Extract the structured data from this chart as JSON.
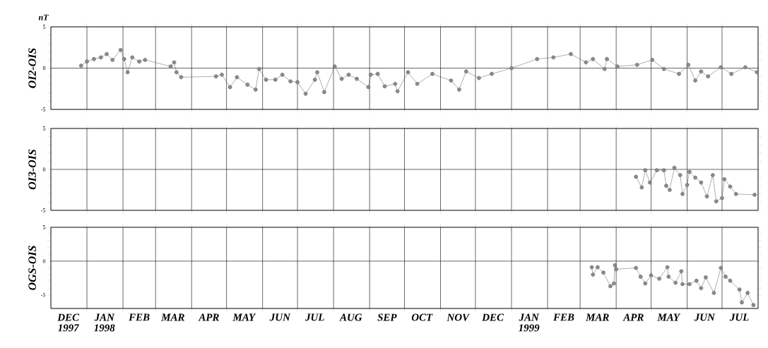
{
  "chart_data": [
    {
      "type": "line",
      "title": "nT",
      "ylabel": "OI2-OIS",
      "xlim": [
        "1997-12-01",
        "1999-08-01"
      ],
      "ylim": [
        -5,
        5
      ],
      "yticks": [
        -5,
        0,
        5
      ],
      "tick_labels": "y",
      "grid": "x",
      "marker": "circle",
      "line_style": "solid",
      "xticks": [
        {
          "value": "1998-01-01",
          "label": null
        },
        {
          "value": "1998-02-01",
          "label": null
        },
        {
          "value": "1998-03-01",
          "label": null
        },
        {
          "value": "1998-04-01",
          "label": null
        },
        {
          "value": "1998-05-01",
          "label": null
        },
        {
          "value": "1998-06-01",
          "label": null
        },
        {
          "value": "1998-07-01",
          "label": null
        },
        {
          "value": "1998-08-01",
          "label": null
        },
        {
          "value": "1998-09-01",
          "label": null
        },
        {
          "value": "1998-10-01",
          "label": null
        },
        {
          "value": "1998-11-01",
          "label": null
        },
        {
          "value": "1998-12-01",
          "label": null
        },
        {
          "value": "1999-01-01",
          "label": null
        },
        {
          "value": "1999-02-01",
          "label": null
        },
        {
          "value": "1999-03-01",
          "label": null
        },
        {
          "value": "1999-04-01",
          "label": null
        },
        {
          "value": "1999-05-01",
          "label": null
        },
        {
          "value": "1999-06-01",
          "label": null
        },
        {
          "value": "1999-07-01",
          "label": null
        }
      ],
      "ref_lines": [
        {
          "axis": "y",
          "value": 0
        }
      ],
      "series": [
        {
          "color": "#8a8a8a",
          "x": [
            "1997-12-27",
            "1998-01-01",
            "1998-01-07",
            "1998-01-13",
            "1998-01-18",
            "1998-01-23",
            "1998-01-30",
            "1998-02-02",
            "1998-02-05",
            "1998-02-09",
            "1998-02-15",
            "1998-02-20",
            "1998-03-14",
            "1998-03-17",
            "1998-03-19",
            "1998-03-23",
            "1998-04-22",
            "1998-04-27",
            "1998-05-04",
            "1998-05-10",
            "1998-05-19",
            "1998-05-26",
            "1998-05-29",
            "1998-06-04",
            "1998-06-12",
            "1998-06-18",
            "1998-06-25",
            "1998-07-01",
            "1998-07-08",
            "1998-07-16",
            "1998-07-18",
            "1998-07-24",
            "1998-08-02",
            "1998-08-08",
            "1998-08-14",
            "1998-08-21",
            "1998-08-31",
            "1998-09-02",
            "1998-09-08",
            "1998-09-14",
            "1998-09-23",
            "1998-09-25",
            "1998-10-04",
            "1998-10-12",
            "1998-10-25",
            "1998-11-10",
            "1998-11-17",
            "1998-11-23",
            "1998-12-04",
            "1998-12-15",
            "1999-01-01",
            "1999-01-23",
            "1999-02-06",
            "1999-02-21",
            "1999-03-06",
            "1999-03-12",
            "1999-03-22",
            "1999-03-24",
            "1999-04-02",
            "1999-04-19",
            "1999-05-02",
            "1999-05-12",
            "1999-05-25",
            "1999-06-02",
            "1999-06-08",
            "1999-06-13",
            "1999-06-19",
            "1999-06-30",
            "1999-07-09",
            "1999-07-21",
            "1999-07-31"
          ],
          "values": [
            0.3,
            0.8,
            1.1,
            1.3,
            1.7,
            1.0,
            2.2,
            1.1,
            -0.5,
            1.3,
            0.8,
            1.0,
            0.2,
            0.7,
            -0.5,
            -1.1,
            -1.0,
            -0.8,
            -2.3,
            -1.1,
            -2.0,
            -2.6,
            -0.1,
            -1.4,
            -1.4,
            -0.8,
            -1.6,
            -1.7,
            -3.1,
            -1.4,
            -0.5,
            -2.9,
            0.2,
            -1.3,
            -0.8,
            -1.3,
            -2.3,
            -0.8,
            -0.7,
            -2.2,
            -1.9,
            -2.8,
            -0.5,
            -1.9,
            -0.7,
            -1.5,
            -2.6,
            -0.4,
            -1.2,
            -0.7,
            0.0,
            1.1,
            1.3,
            1.7,
            0.7,
            1.1,
            -0.1,
            1.1,
            0.2,
            0.4,
            1.0,
            -0.1,
            -0.7,
            0.4,
            -1.5,
            -0.4,
            -1.0,
            0.1,
            -0.7,
            0.1,
            -0.5
          ]
        }
      ]
    },
    {
      "type": "line",
      "ylabel": "OI3-OIS",
      "xlim": [
        "1997-12-01",
        "1999-08-01"
      ],
      "ylim": [
        -5,
        5
      ],
      "yticks": [
        -5,
        0,
        5
      ],
      "tick_labels": "y",
      "grid": "x",
      "marker": "circle",
      "line_style": "solid",
      "xticks": [
        {
          "value": "1998-01-01",
          "label": null
        },
        {
          "value": "1998-02-01",
          "label": null
        },
        {
          "value": "1998-03-01",
          "label": null
        },
        {
          "value": "1998-04-01",
          "label": null
        },
        {
          "value": "1998-05-01",
          "label": null
        },
        {
          "value": "1998-06-01",
          "label": null
        },
        {
          "value": "1998-07-01",
          "label": null
        },
        {
          "value": "1998-08-01",
          "label": null
        },
        {
          "value": "1998-09-01",
          "label": null
        },
        {
          "value": "1998-10-01",
          "label": null
        },
        {
          "value": "1998-11-01",
          "label": null
        },
        {
          "value": "1998-12-01",
          "label": null
        },
        {
          "value": "1999-01-01",
          "label": null
        },
        {
          "value": "1999-02-01",
          "label": null
        },
        {
          "value": "1999-03-01",
          "label": null
        },
        {
          "value": "1999-04-01",
          "label": null
        },
        {
          "value": "1999-05-01",
          "label": null
        },
        {
          "value": "1999-06-01",
          "label": null
        },
        {
          "value": "1999-07-01",
          "label": null
        }
      ],
      "ref_lines": [
        {
          "axis": "y",
          "value": 0
        }
      ],
      "series": [
        {
          "color": "#8a8a8a",
          "x": [
            "1999-04-18",
            "1999-04-23",
            "1999-04-26",
            "1999-04-30",
            "1999-05-06",
            "1999-05-12",
            "1999-05-14",
            "1999-05-17",
            "1999-05-21",
            "1999-05-26",
            "1999-05-28",
            "1999-06-01",
            "1999-06-03",
            "1999-06-08",
            "1999-06-13",
            "1999-06-18",
            "1999-06-23",
            "1999-06-26",
            "1999-07-01",
            "1999-07-03",
            "1999-07-08",
            "1999-07-13",
            "1999-07-29"
          ],
          "values": [
            -0.9,
            -2.2,
            -0.1,
            -1.6,
            -0.1,
            -0.1,
            -2.0,
            -2.5,
            0.2,
            -0.7,
            -3.0,
            -1.9,
            -0.3,
            -1.0,
            -1.6,
            -3.3,
            -0.7,
            -3.9,
            -3.5,
            -1.2,
            -2.1,
            -3.0,
            -3.1
          ]
        }
      ]
    },
    {
      "type": "line",
      "ylabel": "OGS-OIS",
      "xlim": [
        "1997-12-01",
        "1999-08-01"
      ],
      "ylim": [
        -7,
        5
      ],
      "yticks": [
        -5,
        0,
        5
      ],
      "grid": "x",
      "marker": "circle",
      "line_style": "solid",
      "xticks": [
        {
          "value": "1998-01-01",
          "label": null
        },
        {
          "value": "1998-02-01",
          "label": null
        },
        {
          "value": "1998-03-01",
          "label": null
        },
        {
          "value": "1998-04-01",
          "label": null
        },
        {
          "value": "1998-05-01",
          "label": null
        },
        {
          "value": "1998-06-01",
          "label": null
        },
        {
          "value": "1998-07-01",
          "label": null
        },
        {
          "value": "1998-08-01",
          "label": null
        },
        {
          "value": "1998-09-01",
          "label": null
        },
        {
          "value": "1998-10-01",
          "label": null
        },
        {
          "value": "1998-11-01",
          "label": null
        },
        {
          "value": "1998-12-01",
          "label": null
        },
        {
          "value": "1999-01-01",
          "label": null
        },
        {
          "value": "1999-02-01",
          "label": null
        },
        {
          "value": "1999-03-01",
          "label": null
        },
        {
          "value": "1999-04-01",
          "label": null
        },
        {
          "value": "1999-05-01",
          "label": null
        },
        {
          "value": "1999-06-01",
          "label": null
        },
        {
          "value": "1999-07-01",
          "label": null
        },
        {
          "value": "1997-12-16",
          "label": "DEC 1997"
        },
        {
          "value": "1998-01-16",
          "label": "JAN 1998"
        },
        {
          "value": "1998-02-15",
          "label": "FEB"
        },
        {
          "value": "1998-03-16",
          "label": "MAR"
        },
        {
          "value": "1998-04-16",
          "label": "APR"
        },
        {
          "value": "1998-05-16",
          "label": "MAY"
        },
        {
          "value": "1998-06-16",
          "label": "JUN"
        },
        {
          "value": "1998-07-16",
          "label": "JUL"
        },
        {
          "value": "1998-08-16",
          "label": "AUG"
        },
        {
          "value": "1998-09-16",
          "label": "SEP"
        },
        {
          "value": "1998-10-16",
          "label": "OCT"
        },
        {
          "value": "1998-11-16",
          "label": "NOV"
        },
        {
          "value": "1998-12-16",
          "label": "DEC"
        },
        {
          "value": "1999-01-16",
          "label": "JAN 1999"
        },
        {
          "value": "1999-02-15",
          "label": "FEB"
        },
        {
          "value": "1999-03-16",
          "label": "MAR"
        },
        {
          "value": "1999-04-16",
          "label": "APR"
        },
        {
          "value": "1999-05-16",
          "label": "MAY"
        },
        {
          "value": "1999-06-16",
          "label": "JUN"
        },
        {
          "value": "1999-07-16",
          "label": "JUL"
        }
      ],
      "ref_lines": [
        {
          "axis": "y",
          "value": 0
        }
      ],
      "series": [
        {
          "color": "#8a8a8a",
          "x": [
            "1999-03-11",
            "1999-03-12",
            "1999-03-16",
            "1999-03-21",
            "1999-03-27",
            "1999-03-30",
            "1999-03-31",
            "1999-04-01",
            "1999-04-18",
            "1999-04-22",
            "1999-04-26",
            "1999-05-01",
            "1999-05-08",
            "1999-05-15",
            "1999-05-16",
            "1999-05-22",
            "1999-05-27",
            "1999-05-28",
            "1999-06-03",
            "1999-06-09",
            "1999-06-13",
            "1999-06-17",
            "1999-06-24",
            "1999-06-30",
            "1999-07-04",
            "1999-07-08",
            "1999-07-16",
            "1999-07-18",
            "1999-07-23",
            "1999-07-28"
          ],
          "values": [
            -0.9,
            -2.0,
            -0.9,
            -1.7,
            -3.7,
            -3.3,
            -0.6,
            -1.2,
            -1.0,
            -2.3,
            -3.3,
            -2.1,
            -2.6,
            -0.9,
            -2.3,
            -3.2,
            -1.5,
            -3.4,
            -3.4,
            -2.9,
            -4.0,
            -2.4,
            -4.7,
            -1.0,
            -2.3,
            -2.9,
            -4.2,
            -6.1,
            -4.7,
            -6.5
          ]
        }
      ]
    }
  ]
}
